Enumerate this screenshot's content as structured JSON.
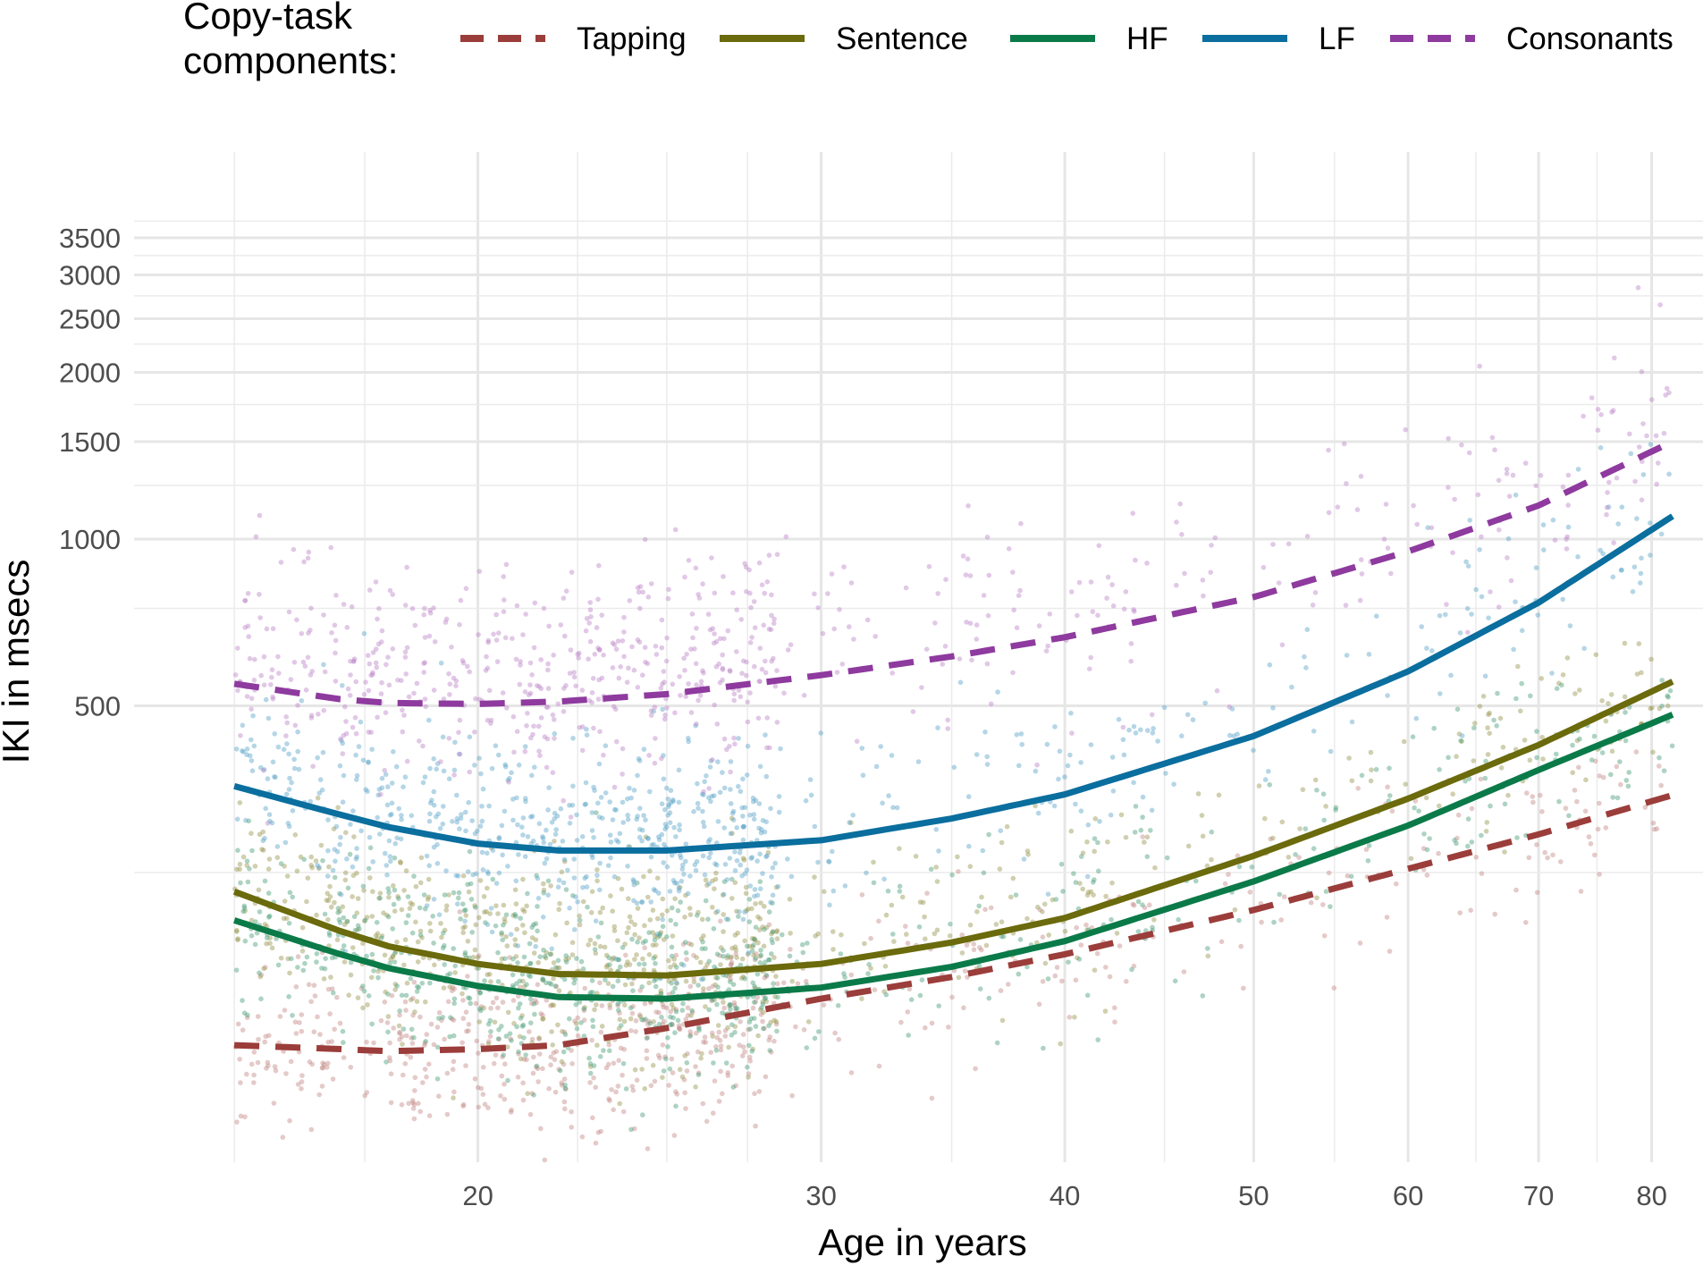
{
  "chart_data": {
    "type": "scatter",
    "xlabel": "Age in years",
    "ylabel": "IKI in msecs",
    "x_scale": "log",
    "y_scale": "log",
    "xlim": [
      14.5,
      85
    ],
    "ylim": [
      75,
      5000
    ],
    "x_ticks": [
      20,
      30,
      40,
      50,
      60,
      70,
      80
    ],
    "x_tick_labels": [
      "20",
      "30",
      "40",
      "50",
      "60",
      "70",
      "80"
    ],
    "y_ticks": [
      500,
      1000,
      1500,
      2000,
      2500,
      3000,
      3500
    ],
    "y_tick_labels": [
      "500",
      "1000",
      "1500",
      "2000",
      "2500",
      "3000",
      "3500"
    ],
    "grid": true,
    "legend": {
      "title_lines": [
        "Copy-task",
        "components:"
      ],
      "position": "top"
    },
    "series": [
      {
        "name": "Tapping",
        "color": "#9B3D3A",
        "dash": "dashed",
        "x": [
          15,
          17,
          18,
          20,
          22,
          25,
          30,
          35,
          40,
          50,
          60,
          70,
          82
        ],
        "y": [
          122,
          120,
          119,
          120,
          122,
          131,
          148,
          162,
          178,
          214,
          254,
          293,
          345
        ],
        "points": {
          "n": 650,
          "center": 118,
          "spread": 0.18,
          "color": "#C48A87"
        }
      },
      {
        "name": "Sentence",
        "color": "#6B6A0C",
        "dash": "solid",
        "x": [
          15,
          17,
          18,
          20,
          22,
          25,
          30,
          35,
          40,
          50,
          60,
          70,
          82
        ],
        "y": [
          231,
          196,
          184,
          171,
          164,
          163,
          171,
          187,
          207,
          268,
          340,
          425,
          553
        ],
        "points": {
          "n": 750,
          "center": 180,
          "spread": 0.2,
          "color": "#96954E"
        }
      },
      {
        "name": "HF",
        "color": "#0B7A49",
        "dash": "solid",
        "x": [
          15,
          17,
          18,
          20,
          22,
          25,
          30,
          35,
          40,
          50,
          60,
          70,
          82
        ],
        "y": [
          205,
          178,
          168,
          156,
          149,
          148,
          155,
          169,
          188,
          241,
          304,
          383,
          482
        ],
        "points": {
          "n": 750,
          "center": 165,
          "spread": 0.2,
          "color": "#4A9E78"
        }
      },
      {
        "name": "LF",
        "color": "#0A6E9E",
        "dash": "solid",
        "x": [
          15,
          17,
          18,
          20,
          22,
          25,
          30,
          35,
          40,
          50,
          60,
          70,
          82
        ],
        "y": [
          358,
          318,
          302,
          282,
          274,
          274,
          286,
          313,
          346,
          441,
          577,
          768,
          1100
        ],
        "points": {
          "n": 750,
          "center": 300,
          "spread": 0.2,
          "color": "#5CA4C8"
        }
      },
      {
        "name": "Consonants",
        "color": "#8E3A9E",
        "dash": "dashed",
        "x": [
          15,
          17,
          18,
          20,
          22,
          25,
          30,
          35,
          40,
          50,
          60,
          70,
          82
        ],
        "y": [
          548,
          514,
          506,
          504,
          509,
          525,
          568,
          614,
          665,
          786,
          950,
          1150,
          1500
        ],
        "points": {
          "n": 700,
          "center": 560,
          "spread": 0.22,
          "color": "#BC84C8"
        }
      }
    ]
  }
}
